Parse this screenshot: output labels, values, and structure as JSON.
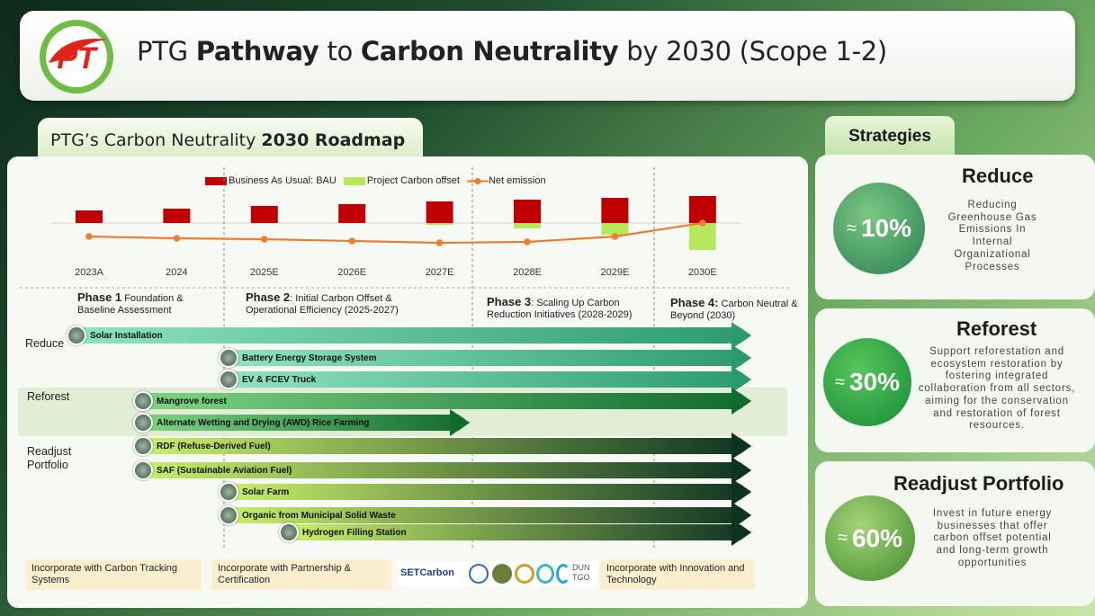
{
  "header": {
    "title_parts": [
      {
        "text": "PTG ",
        "bold": false
      },
      {
        "text": "Pathway",
        "bold": true
      },
      {
        "text": " to ",
        "bold": false
      },
      {
        "text": "Carbon Neutrality",
        "bold": true
      },
      {
        "text": " by 2030 (Scope 1-2)",
        "bold": false
      }
    ],
    "logo_text": "PT"
  },
  "roadmap": {
    "tab_prefix": "PTG’s Carbon Neutrality ",
    "tab_bold": "2030 Roadmap"
  },
  "chart_data": {
    "type": "bar",
    "categories": [
      "2023A",
      "2024",
      "2025E",
      "2026E",
      "2027E",
      "2028E",
      "2029E",
      "2030E"
    ],
    "series": [
      {
        "name": "Business As Usual: BAU",
        "values": [
          1.4,
          1.6,
          1.9,
          2.1,
          2.4,
          2.6,
          2.8,
          3.0
        ],
        "color": "#c00000"
      },
      {
        "name": "Project Carbon offset",
        "values": [
          0,
          0,
          0,
          0,
          -0.2,
          -0.6,
          -1.3,
          -3.0
        ],
        "color": "#b5e85a"
      },
      {
        "name": "Net emission",
        "values": [
          -1.5,
          -1.7,
          -1.8,
          -2.0,
          -2.2,
          -2.1,
          -1.5,
          0.0
        ],
        "color": "#ed7d31"
      }
    ],
    "ylim": [
      -3.2,
      3.2
    ],
    "grid": false,
    "legend": "top"
  },
  "phases": [
    {
      "bold": "Phase 1",
      "text": "  Foundation & Baseline Assessment"
    },
    {
      "bold": "Phase 2",
      "text": ": Initial Carbon Offset & Operational Efficiency (2025-2027)"
    },
    {
      "bold": "Phase 3",
      "text": ": Scaling Up Carbon Reduction Initiatives (2028-2029)"
    },
    {
      "bold": "Phase 4:",
      "text": " Carbon Neutral & Beyond (2030)"
    }
  ],
  "categories": {
    "reduce": "Reduce",
    "reforest": "Reforest",
    "readjust": "Readjust Portfolio"
  },
  "initiatives": [
    {
      "label": "Solar Installation",
      "group": "reduce",
      "start_year": 2023,
      "end_year": 2030,
      "icon": "solar-panel-icon"
    },
    {
      "label": "Battery Energy Storage System",
      "group": "reduce",
      "start_year": 2025,
      "end_year": 2030,
      "icon": "battery-icon"
    },
    {
      "label": "EV & FCEV Truck",
      "group": "reduce",
      "start_year": 2025,
      "end_year": 2030,
      "icon": "truck-icon"
    },
    {
      "label": "Mangrove forest",
      "group": "reforest",
      "start_year": 2024,
      "end_year": 2030,
      "icon": "mangrove-icon"
    },
    {
      "label": "Alternate Wetting and Drying (AWD) Rice Farming",
      "group": "reforest",
      "start_year": 2024,
      "end_year": 2027,
      "icon": "rice-icon"
    },
    {
      "label": "RDF (Refuse-Derived Fuel)",
      "group": "readjust",
      "start_year": 2024,
      "end_year": 2030,
      "icon": "rdf-icon"
    },
    {
      "label": "SAF (Sustainable Aviation Fuel)",
      "group": "readjust",
      "start_year": 2024,
      "end_year": 2030,
      "icon": "aviation-icon"
    },
    {
      "label": "Solar Farm",
      "group": "readjust",
      "start_year": 2025,
      "end_year": 2030,
      "icon": "solar-farm-icon"
    },
    {
      "label": "Organic from Municipal Solid Waste",
      "group": "readjust",
      "start_year": 2025,
      "end_year": 2030,
      "icon": "waste-icon"
    },
    {
      "label": "Hydrogen Filling Station",
      "group": "readjust",
      "start_year": 2026,
      "end_year": 2030,
      "icon": "hydrogen-icon"
    }
  ],
  "footer": {
    "tracking": "Incorporate with Carbon Tracking Systems",
    "partnership": "Incorporate with Partnership & Certification",
    "innovation": "Incorporate with Innovation and Technology",
    "partner_logo_text": "SETCarbon",
    "partner_logo_text_2": "DUN TGO"
  },
  "strategies": {
    "tab": "Strategies",
    "items": [
      {
        "title": "Reduce",
        "approx": "≈",
        "pct": "10%",
        "desc": "Reducing Greenhouse Gas Emissions In Internal Organizational Processes"
      },
      {
        "title": "Reforest",
        "approx": "≈",
        "pct": "30%",
        "desc": "Support reforestation and ecosystem restoration by fostering integrated collaboration from all sectors, aiming for the conservation and restoration of forest resources."
      },
      {
        "title": "Readjust Portfolio",
        "approx": "≈",
        "pct": "60%",
        "desc": "Invest in future energy businesses that offer carbon offset potential and long-term growth opportunities"
      }
    ]
  },
  "colors": {
    "bau": "#c00000",
    "offset": "#b5e85a",
    "net": "#ed7d31",
    "reduce_arrow": "#1f9e78",
    "reforest_arrow": "#0f6b2e",
    "readjust_arrow": "#0e3322"
  }
}
